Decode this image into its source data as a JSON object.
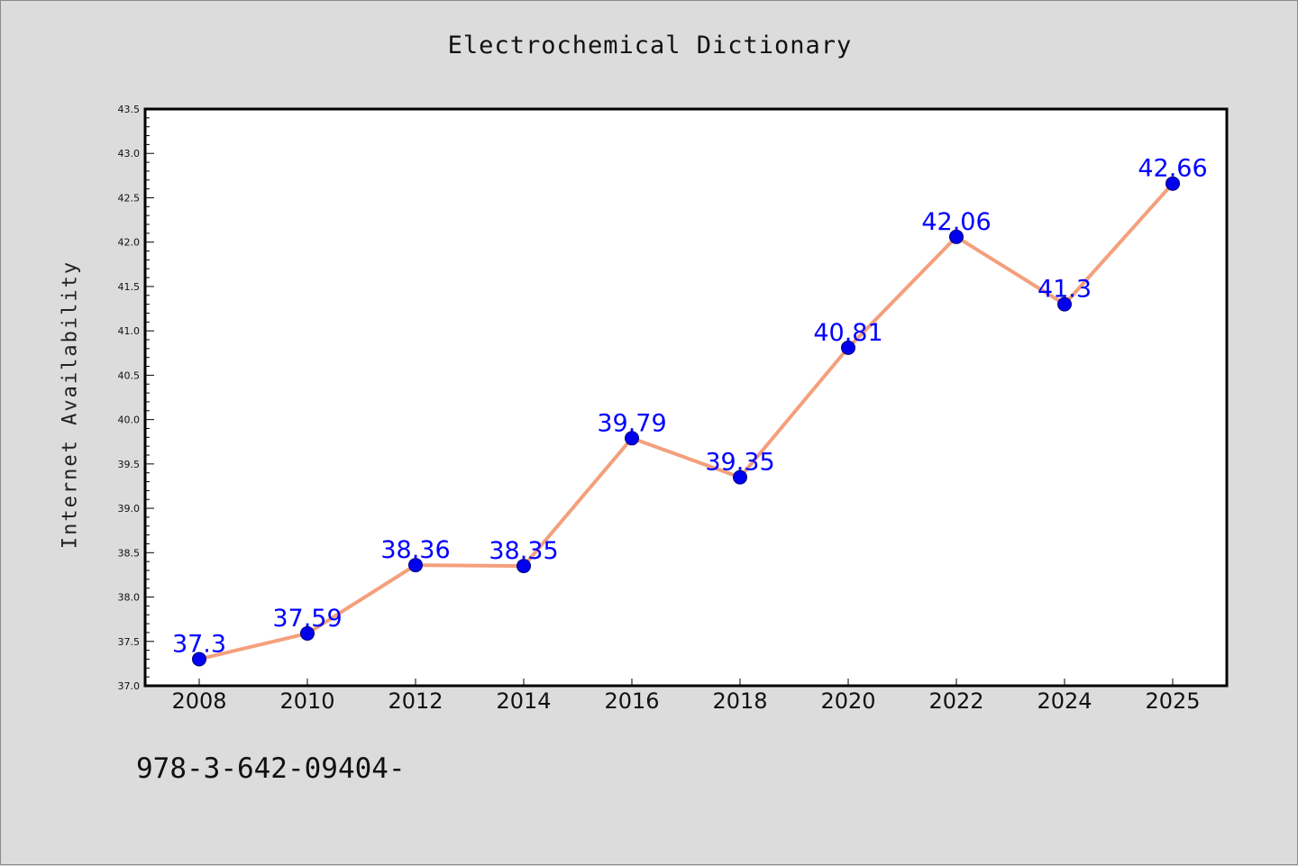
{
  "chart_data": {
    "type": "line",
    "title": "Electrochemical Dictionary",
    "xlabel": "",
    "ylabel": "Internet Availability",
    "categories": [
      "2008",
      "2010",
      "2012",
      "2014",
      "2016",
      "2018",
      "2020",
      "2022",
      "2024",
      "2025"
    ],
    "values": [
      37.3,
      37.59,
      38.36,
      38.35,
      39.79,
      39.35,
      40.81,
      42.06,
      41.3,
      42.66
    ],
    "data_labels": [
      "37.3",
      "37.59",
      "38.36",
      "38.35",
      "39.79",
      "39.35",
      "40.81",
      "42.06",
      "41.3",
      "42.66"
    ],
    "ylim": [
      37.0,
      43.5
    ],
    "y_ticks": [
      "37.0",
      "37.5",
      "38.0",
      "38.5",
      "39.0",
      "39.5",
      "40.0",
      "40.5",
      "41.0",
      "41.5",
      "42.0",
      "42.5",
      "43.0",
      "43.5"
    ],
    "grid": false,
    "legend": "none",
    "colors": {
      "line": "#f4a07c",
      "marker": "#0000ee",
      "marker_edge": "#000080",
      "label": "#0000ff"
    }
  },
  "footer": {
    "code": "978-3-642-09404-"
  }
}
